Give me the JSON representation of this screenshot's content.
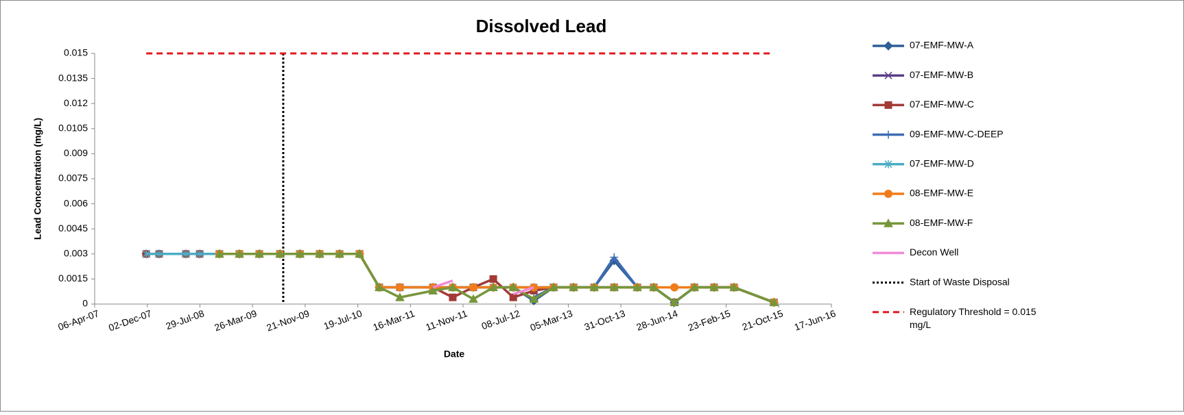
{
  "chart_data": {
    "type": "line",
    "title": "Dissolved Lead",
    "x_label": "Date",
    "y_label": "Lead Concentration (mg/L)",
    "x": [
      "2007-11-27",
      "2008-01-25",
      "2008-05-26",
      "2008-07-28",
      "2008-10-26",
      "2009-01-25",
      "2009-04-26",
      "2009-07-29",
      "2009-10-28",
      "2010-01-26",
      "2010-04-27",
      "2010-07-27",
      "2010-10-25",
      "2011-01-27",
      "2011-06-27",
      "2011-09-25",
      "2011-12-28",
      "2012-03-28",
      "2012-06-27",
      "2012-09-29",
      "2012-12-28",
      "2013-03-29",
      "2013-07-01",
      "2013-09-30",
      "2014-01-14",
      "2014-03-30",
      "2014-07-02",
      "2014-10-01",
      "2014-12-30",
      "2015-03-31",
      "2015-09-29"
    ],
    "xlim": [
      "2007-04-06",
      "2016-06-17"
    ],
    "xticks": [
      {
        "value": "2007-04-06",
        "label": "06-Apr-07"
      },
      {
        "value": "2007-12-02",
        "label": "02-Dec-07"
      },
      {
        "value": "2008-07-29",
        "label": "29-Jul-08"
      },
      {
        "value": "2009-03-26",
        "label": "26-Mar-09"
      },
      {
        "value": "2009-11-21",
        "label": "21-Nov-09"
      },
      {
        "value": "2010-07-19",
        "label": "19-Jul-10"
      },
      {
        "value": "2011-03-16",
        "label": "16-Mar-11"
      },
      {
        "value": "2011-11-11",
        "label": "11-Nov-11"
      },
      {
        "value": "2012-07-08",
        "label": "08-Jul-12"
      },
      {
        "value": "2013-03-05",
        "label": "05-Mar-13"
      },
      {
        "value": "2013-10-31",
        "label": "31-Oct-13"
      },
      {
        "value": "2014-06-28",
        "label": "28-Jun-14"
      },
      {
        "value": "2015-02-23",
        "label": "23-Feb-15"
      },
      {
        "value": "2015-10-21",
        "label": "21-Oct-15"
      },
      {
        "value": "2016-06-17",
        "label": "17-Jun-16"
      }
    ],
    "ylim": [
      0,
      0.015
    ],
    "yticks": [
      0,
      0.0015,
      0.003,
      0.0045,
      0.006,
      0.0075,
      0.009,
      0.0105,
      0.012,
      0.0135,
      0.015
    ],
    "series": [
      {
        "name": "07-EMF-MW-A",
        "color": "#2e5e96",
        "marker": "diamond",
        "values": [
          0.003,
          0.003,
          0.003,
          0.003,
          0.003,
          0.003,
          0.003,
          0.003,
          0.003,
          0.003,
          0.003,
          0.003,
          0.001,
          0.001,
          0.001,
          0.001,
          0.001,
          0.001,
          0.001,
          0.0002,
          0.001,
          0.001,
          0.001,
          0.0026,
          0.001,
          0.001,
          0.0001,
          0.001,
          0.001,
          0.001,
          0.0001
        ]
      },
      {
        "name": "07-EMF-MW-B",
        "color": "#5b3f86",
        "marker": "x",
        "values": [
          0.003,
          0.003,
          0.003,
          0.003,
          0.003,
          0.003,
          0.003,
          0.003,
          0.003,
          0.003,
          0.003,
          0.003,
          0.001,
          0.001,
          0.001,
          0.001,
          0.001,
          0.001,
          0.001,
          0.001,
          0.001,
          0.001,
          0.001,
          0.001,
          0.001,
          0.001,
          0.0001,
          0.001,
          0.001,
          0.001,
          0.0001
        ]
      },
      {
        "name": "07-EMF-MW-C",
        "color": "#a33a36",
        "marker": "square",
        "values": [
          0.003,
          0.003,
          0.003,
          0.003,
          0.003,
          0.003,
          0.003,
          0.003,
          0.003,
          0.003,
          0.003,
          0.003,
          0.001,
          0.001,
          0.001,
          0.0004,
          0.001,
          0.0015,
          0.0004,
          0.0008,
          0.001,
          0.001,
          0.001,
          0.001,
          0.001,
          0.001,
          0.0001,
          0.001,
          0.001,
          0.001,
          0.0001
        ]
      },
      {
        "name": "09-EMF-MW-C-DEEP",
        "color": "#3d6db3",
        "marker": "plus",
        "values": [
          null,
          null,
          null,
          null,
          null,
          null,
          null,
          null,
          null,
          null,
          null,
          null,
          null,
          null,
          null,
          null,
          null,
          null,
          null,
          0.0004,
          0.001,
          0.001,
          0.001,
          0.0028,
          0.001,
          0.001,
          0.0001,
          0.001,
          0.001,
          0.001,
          0.0001
        ]
      },
      {
        "name": "07-EMF-MW-D",
        "color": "#4bacc6",
        "marker": "star",
        "values": [
          0.003,
          0.003,
          0.003,
          0.003,
          0.003,
          0.003,
          0.003,
          0.003,
          0.003,
          0.003,
          0.003,
          0.003,
          0.001,
          0.001,
          0.001,
          0.001,
          0.001,
          0.001,
          0.001,
          0.001,
          0.001,
          0.001,
          0.001,
          0.001,
          0.001,
          0.001,
          0.0001,
          0.001,
          0.001,
          0.001,
          0.0001
        ]
      },
      {
        "name": "08-EMF-MW-E",
        "color": "#f07c1c",
        "marker": "circle",
        "values": [
          null,
          null,
          null,
          null,
          0.003,
          0.003,
          0.003,
          0.003,
          0.003,
          0.003,
          0.003,
          0.003,
          0.001,
          0.001,
          0.001,
          0.001,
          0.001,
          0.001,
          0.001,
          0.001,
          0.001,
          0.001,
          0.001,
          0.001,
          0.001,
          0.001,
          0.001,
          0.001,
          0.001,
          0.001,
          0.0001
        ]
      },
      {
        "name": "08-EMF-MW-F",
        "color": "#77963b",
        "marker": "triangle",
        "values": [
          null,
          null,
          null,
          null,
          0.003,
          0.003,
          0.003,
          0.003,
          0.003,
          0.003,
          0.003,
          0.003,
          0.001,
          0.0004,
          0.0008,
          0.001,
          0.0003,
          0.001,
          0.001,
          0.0003,
          0.001,
          0.001,
          0.001,
          0.001,
          0.001,
          0.001,
          0.0001,
          0.001,
          0.001,
          0.001,
          0.0001
        ]
      },
      {
        "name": "Decon Well",
        "color": "#f28ad6",
        "marker": "none",
        "values": [
          null,
          null,
          null,
          null,
          null,
          null,
          null,
          null,
          null,
          null,
          null,
          null,
          null,
          null,
          0.001,
          0.0014,
          null,
          null,
          0.0006,
          0.001,
          null,
          null,
          null,
          null,
          null,
          null,
          null,
          null,
          null,
          null,
          null
        ]
      }
    ],
    "reference_lines": [
      {
        "name": "Start of Waste Disposal",
        "x": "2009-08-13",
        "color": "#000000"
      },
      {
        "name": "Regulatory Threshold = 0.015 mg/L",
        "y": 0.015,
        "color": "#e0191f"
      }
    ]
  }
}
